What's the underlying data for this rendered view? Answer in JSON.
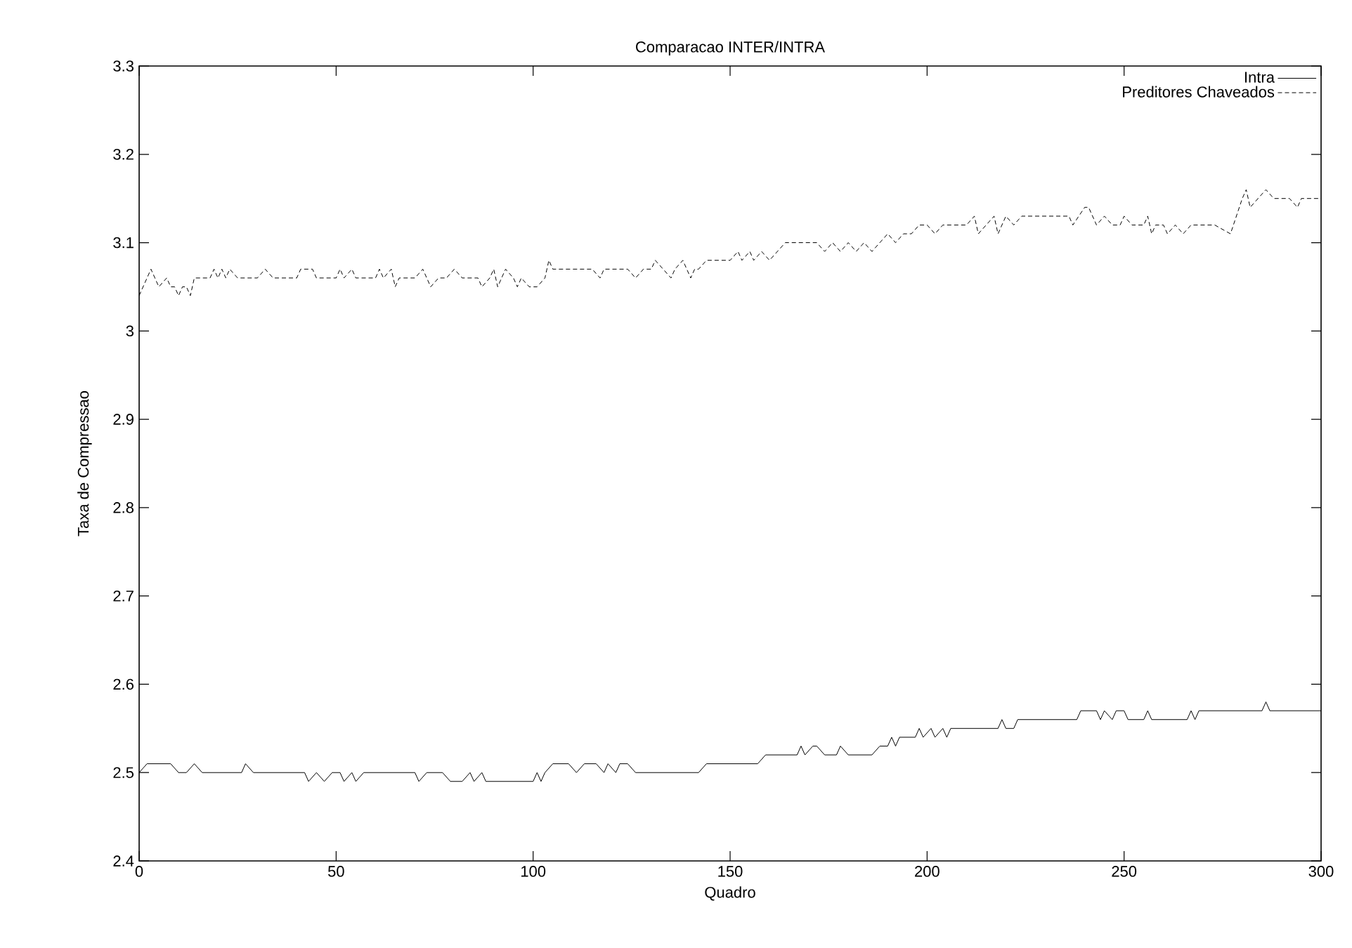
{
  "chart_data": {
    "type": "line",
    "title": "Comparacao INTER/INTRA",
    "xlabel": "Quadro",
    "ylabel": "Taxa de Compressao",
    "xlim": [
      0,
      300
    ],
    "xticks": [
      0,
      50,
      100,
      150,
      200,
      250,
      300
    ],
    "ylim": [
      2.4,
      3.3
    ],
    "yticks": [
      2.4,
      2.5,
      2.6,
      2.7,
      2.8,
      2.9,
      3,
      3.1,
      3.2,
      3.3
    ],
    "legend": "top right",
    "grid": false,
    "marker": "none",
    "series": [
      {
        "name": "Intra",
        "color": "#000000",
        "line_style": "solid",
        "x": [
          0,
          2,
          8,
          10,
          12,
          14,
          16,
          26,
          27,
          29,
          42,
          43,
          45,
          47,
          49,
          51,
          52,
          54,
          55,
          57,
          70,
          71,
          73,
          77,
          79,
          82,
          84,
          85,
          87,
          88,
          100,
          101,
          102,
          103,
          105,
          109,
          111,
          113,
          116,
          118,
          119,
          121,
          122,
          124,
          126,
          142,
          144,
          157,
          159,
          167,
          168,
          169,
          171,
          172,
          174,
          177,
          178,
          180,
          186,
          188,
          190,
          191,
          192,
          193,
          197,
          198,
          199,
          201,
          202,
          204,
          205,
          206,
          208,
          218,
          219,
          220,
          222,
          223,
          238,
          239,
          243,
          244,
          245,
          247,
          248,
          250,
          251,
          255,
          256,
          257,
          266,
          267,
          268,
          269,
          285,
          286,
          287,
          300
        ],
        "values": [
          2.5,
          2.51,
          2.51,
          2.5,
          2.5,
          2.51,
          2.5,
          2.5,
          2.51,
          2.5,
          2.5,
          2.49,
          2.5,
          2.49,
          2.5,
          2.5,
          2.49,
          2.5,
          2.49,
          2.5,
          2.5,
          2.49,
          2.5,
          2.5,
          2.49,
          2.49,
          2.5,
          2.49,
          2.5,
          2.49,
          2.49,
          2.5,
          2.49,
          2.5,
          2.51,
          2.51,
          2.5,
          2.51,
          2.51,
          2.5,
          2.51,
          2.5,
          2.51,
          2.51,
          2.5,
          2.5,
          2.51,
          2.51,
          2.52,
          2.52,
          2.53,
          2.52,
          2.53,
          2.53,
          2.52,
          2.52,
          2.53,
          2.52,
          2.52,
          2.53,
          2.53,
          2.54,
          2.53,
          2.54,
          2.54,
          2.55,
          2.54,
          2.55,
          2.54,
          2.55,
          2.54,
          2.55,
          2.55,
          2.55,
          2.56,
          2.55,
          2.55,
          2.56,
          2.56,
          2.57,
          2.57,
          2.56,
          2.57,
          2.56,
          2.57,
          2.57,
          2.56,
          2.56,
          2.57,
          2.56,
          2.56,
          2.57,
          2.56,
          2.57,
          2.57,
          2.58,
          2.57,
          2.57
        ]
      },
      {
        "name": "Preditores Chaveados",
        "color": "#000000",
        "line_style": "dashed",
        "x": [
          0,
          2,
          3,
          4,
          5,
          7,
          8,
          9,
          10,
          11,
          12,
          13,
          14,
          18,
          19,
          20,
          21,
          22,
          23,
          25,
          30,
          32,
          34,
          40,
          41,
          44,
          45,
          50,
          51,
          52,
          54,
          55,
          60,
          61,
          62,
          64,
          65,
          66,
          70,
          72,
          74,
          76,
          78,
          80,
          82,
          86,
          87,
          89,
          90,
          91,
          92,
          93,
          95,
          96,
          97,
          99,
          101,
          103,
          104,
          105,
          115,
          117,
          118,
          124,
          126,
          128,
          130,
          131,
          133,
          135,
          136,
          138,
          140,
          141,
          142,
          144,
          150,
          152,
          153,
          155,
          156,
          158,
          160,
          162,
          164,
          172,
          174,
          176,
          178,
          180,
          182,
          184,
          186,
          188,
          190,
          192,
          194,
          196,
          198,
          200,
          202,
          204,
          210,
          212,
          213,
          215,
          217,
          218,
          220,
          222,
          224,
          236,
          237,
          240,
          241,
          243,
          245,
          247,
          249,
          250,
          252,
          255,
          256,
          257,
          258,
          260,
          261,
          263,
          265,
          267,
          269,
          273,
          277,
          280,
          281,
          282,
          284,
          286,
          288,
          292,
          294,
          295,
          300
        ],
        "values": [
          3.04,
          3.06,
          3.07,
          3.06,
          3.05,
          3.06,
          3.05,
          3.05,
          3.04,
          3.05,
          3.05,
          3.04,
          3.06,
          3.06,
          3.07,
          3.06,
          3.07,
          3.06,
          3.07,
          3.06,
          3.06,
          3.07,
          3.06,
          3.06,
          3.07,
          3.07,
          3.06,
          3.06,
          3.07,
          3.06,
          3.07,
          3.06,
          3.06,
          3.07,
          3.06,
          3.07,
          3.05,
          3.06,
          3.06,
          3.07,
          3.05,
          3.06,
          3.06,
          3.07,
          3.06,
          3.06,
          3.05,
          3.06,
          3.07,
          3.05,
          3.06,
          3.07,
          3.06,
          3.05,
          3.06,
          3.05,
          3.05,
          3.06,
          3.08,
          3.07,
          3.07,
          3.06,
          3.07,
          3.07,
          3.06,
          3.07,
          3.07,
          3.08,
          3.07,
          3.06,
          3.07,
          3.08,
          3.06,
          3.07,
          3.07,
          3.08,
          3.08,
          3.09,
          3.08,
          3.09,
          3.08,
          3.09,
          3.08,
          3.09,
          3.1,
          3.1,
          3.09,
          3.1,
          3.09,
          3.1,
          3.09,
          3.1,
          3.09,
          3.1,
          3.11,
          3.1,
          3.11,
          3.11,
          3.12,
          3.12,
          3.11,
          3.12,
          3.12,
          3.13,
          3.11,
          3.12,
          3.13,
          3.11,
          3.13,
          3.12,
          3.13,
          3.13,
          3.12,
          3.14,
          3.14,
          3.12,
          3.13,
          3.12,
          3.12,
          3.13,
          3.12,
          3.12,
          3.13,
          3.11,
          3.12,
          3.12,
          3.11,
          3.12,
          3.11,
          3.12,
          3.12,
          3.12,
          3.11,
          3.15,
          3.16,
          3.14,
          3.15,
          3.16,
          3.15,
          3.15,
          3.14,
          3.15,
          3.15
        ]
      }
    ]
  }
}
